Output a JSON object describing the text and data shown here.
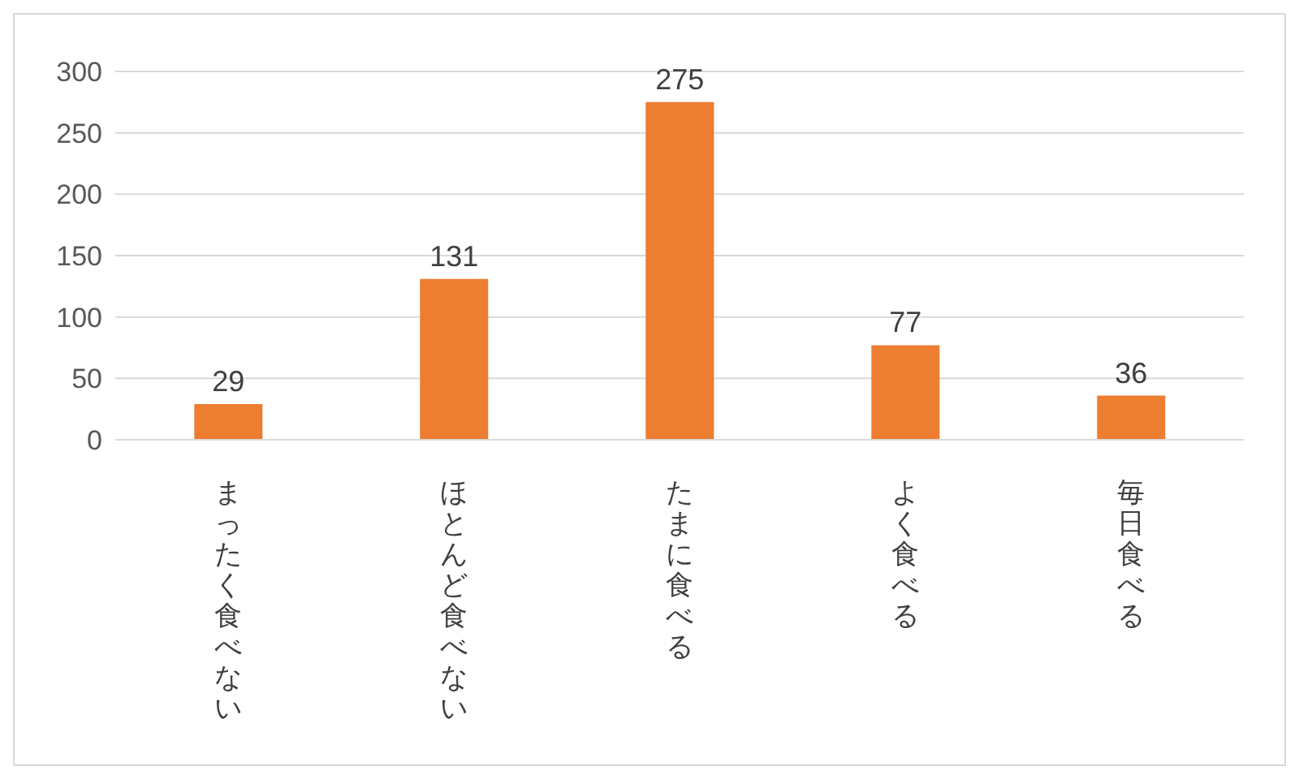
{
  "chart_data": {
    "type": "bar",
    "categories": [
      "まったく食べない",
      "ほとんど食べない",
      "たまに食べる",
      "よく食べる",
      "毎日食べる"
    ],
    "values": [
      29,
      131,
      275,
      77,
      36
    ],
    "color": "#ed7d31",
    "ylim": [
      0,
      300
    ],
    "yticks": [
      0,
      50,
      100,
      150,
      200,
      250,
      300
    ],
    "grid": "y",
    "data_labels": true
  }
}
